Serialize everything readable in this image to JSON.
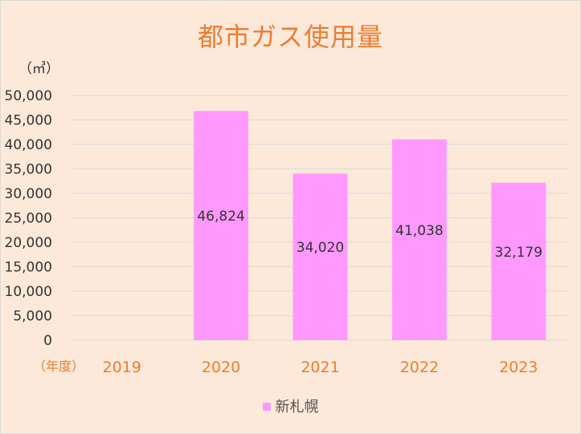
{
  "chart_data": {
    "type": "bar",
    "title": "都市ガス使用量",
    "unit_label": "（㎥）",
    "xlabel": "（年度）",
    "ylabel": "",
    "categories": [
      "2019",
      "2020",
      "2021",
      "2022",
      "2023"
    ],
    "series": [
      {
        "name": "新札幌",
        "values": [
          null,
          46824,
          34020,
          41038,
          32179
        ],
        "labels": [
          "",
          "46,824",
          "34,020",
          "41,038",
          "32,179"
        ],
        "color": "#ff99ff"
      }
    ],
    "ylim": [
      0,
      50000
    ],
    "yticks": [
      "0",
      "5,000",
      "10,000",
      "15,000",
      "20,000",
      "25,000",
      "30,000",
      "35,000",
      "40,000",
      "45,000",
      "50,000"
    ],
    "grid": true,
    "legend_position": "bottom",
    "colors": {
      "background": "#fde9d9",
      "title": "#ed7d31",
      "category_labels": "#ed7d31",
      "gridlines": "#d9d9d9"
    }
  }
}
